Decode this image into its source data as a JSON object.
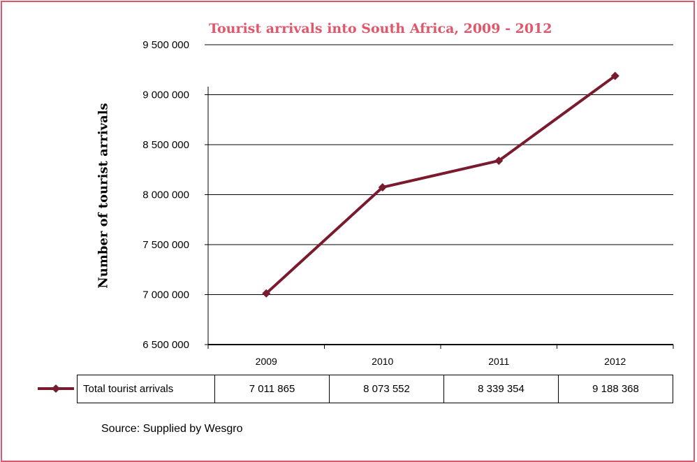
{
  "chart_data": {
    "type": "line",
    "title": "Tourist arrivals into South Africa, 2009 - 2012",
    "ylabel": "Number of tourist arrivals",
    "xlabel": "",
    "categories": [
      "2009",
      "2010",
      "2011",
      "2012"
    ],
    "series": [
      {
        "name": "Total tourist arrivals",
        "values": [
          7011865,
          8073552,
          8339354,
          9188368
        ],
        "color": "#7a1a2e"
      }
    ],
    "table_values": [
      "7 011 865",
      "8 073 552",
      "8 339 354",
      "9 188 368"
    ],
    "ylim": [
      6500000,
      9500000
    ],
    "yticks": [
      6500000,
      7000000,
      7500000,
      8000000,
      8500000,
      9000000,
      9500000
    ],
    "ytick_labels": [
      "6 500 000",
      "7 000 000",
      "7 500 000",
      "8 000 000",
      "8 500 000",
      "9 000 000",
      "9 500 000"
    ],
    "grid": true,
    "legend": "data table below chart"
  },
  "source_text": "Source: Supplied by Wesgro",
  "colors": {
    "accent": "#e2566b",
    "series": "#7a1a2e"
  }
}
